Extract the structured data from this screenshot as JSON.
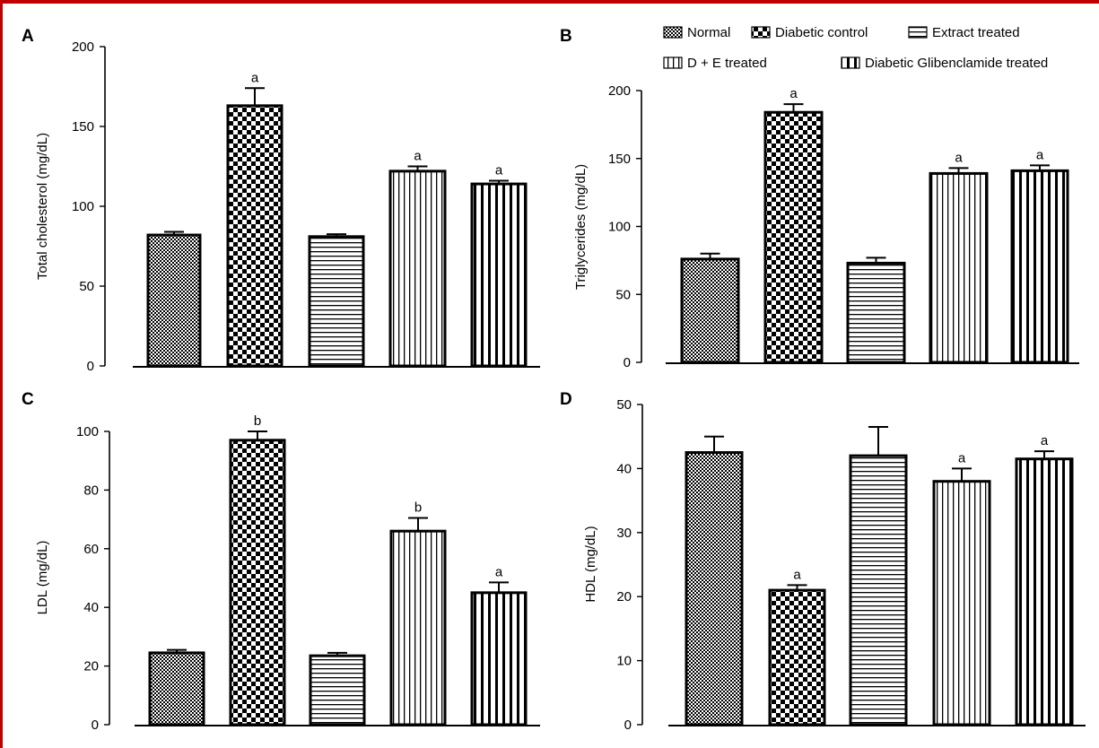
{
  "colors": {
    "frame": "#c00000",
    "ink": "#000000",
    "fill": "#ffffff"
  },
  "legend": {
    "items": [
      {
        "label": "Normal",
        "pattern": "checker-fine"
      },
      {
        "label": "Diabetic control",
        "pattern": "checker-large"
      },
      {
        "label": "Extract treated",
        "pattern": "horizontal-lines"
      },
      {
        "label": "D + E treated",
        "pattern": "vertical-lines"
      },
      {
        "label": "Diabetic Glibenclamide treated",
        "pattern": "vertical-thick"
      }
    ]
  },
  "chart_data": [
    {
      "panel": "A",
      "type": "bar",
      "ylabel": "Total cholesterol (mg/dL)",
      "ylim": [
        0,
        200
      ],
      "yticks": [
        0,
        50,
        100,
        150,
        200
      ],
      "categories": [
        "Normal",
        "Diabetic control",
        "Extract treated",
        "D + E treated",
        "Diabetic Glibenclamide treated"
      ],
      "values": [
        82,
        163,
        81,
        122,
        114
      ],
      "errors": [
        2,
        11,
        1.5,
        3,
        2
      ],
      "significance": [
        "",
        "a",
        "",
        "a",
        "a"
      ]
    },
    {
      "panel": "B",
      "type": "bar",
      "ylabel": "Triglycerides (mg/dL)",
      "ylim": [
        0,
        200
      ],
      "yticks": [
        0,
        50,
        100,
        150,
        200
      ],
      "categories": [
        "Normal",
        "Diabetic control",
        "Extract treated",
        "D + E treated",
        "Diabetic Glibenclamide treated"
      ],
      "values": [
        76,
        184,
        73,
        139,
        141
      ],
      "errors": [
        4,
        6,
        4,
        4,
        4
      ],
      "significance": [
        "",
        "a",
        "",
        "a",
        "a"
      ]
    },
    {
      "panel": "C",
      "type": "bar",
      "ylabel": "LDL  (mg/dL)",
      "ylim": [
        0,
        100
      ],
      "yticks": [
        0,
        20,
        40,
        60,
        80,
        100
      ],
      "categories": [
        "Normal",
        "Diabetic control",
        "Extract treated",
        "D + E treated",
        "Diabetic Glibenclamide treated"
      ],
      "values": [
        24.5,
        97,
        23.5,
        66,
        45
      ],
      "errors": [
        1,
        3,
        1,
        4.5,
        3.5
      ],
      "significance": [
        "",
        "b",
        "",
        "b",
        "a"
      ]
    },
    {
      "panel": "D",
      "type": "bar",
      "ylabel": "HDL  (mg/dL)",
      "ylim": [
        0,
        50
      ],
      "yticks": [
        0,
        10,
        20,
        30,
        40,
        50
      ],
      "categories": [
        "Normal",
        "Diabetic control",
        "Extract treated",
        "D + E treated",
        "Diabetic Glibenclamide treated"
      ],
      "values": [
        42.5,
        21,
        42,
        38,
        41.5
      ],
      "errors": [
        2.5,
        0.8,
        4.5,
        2,
        1.2
      ],
      "significance": [
        "",
        "a",
        "",
        "a",
        "a"
      ]
    }
  ]
}
